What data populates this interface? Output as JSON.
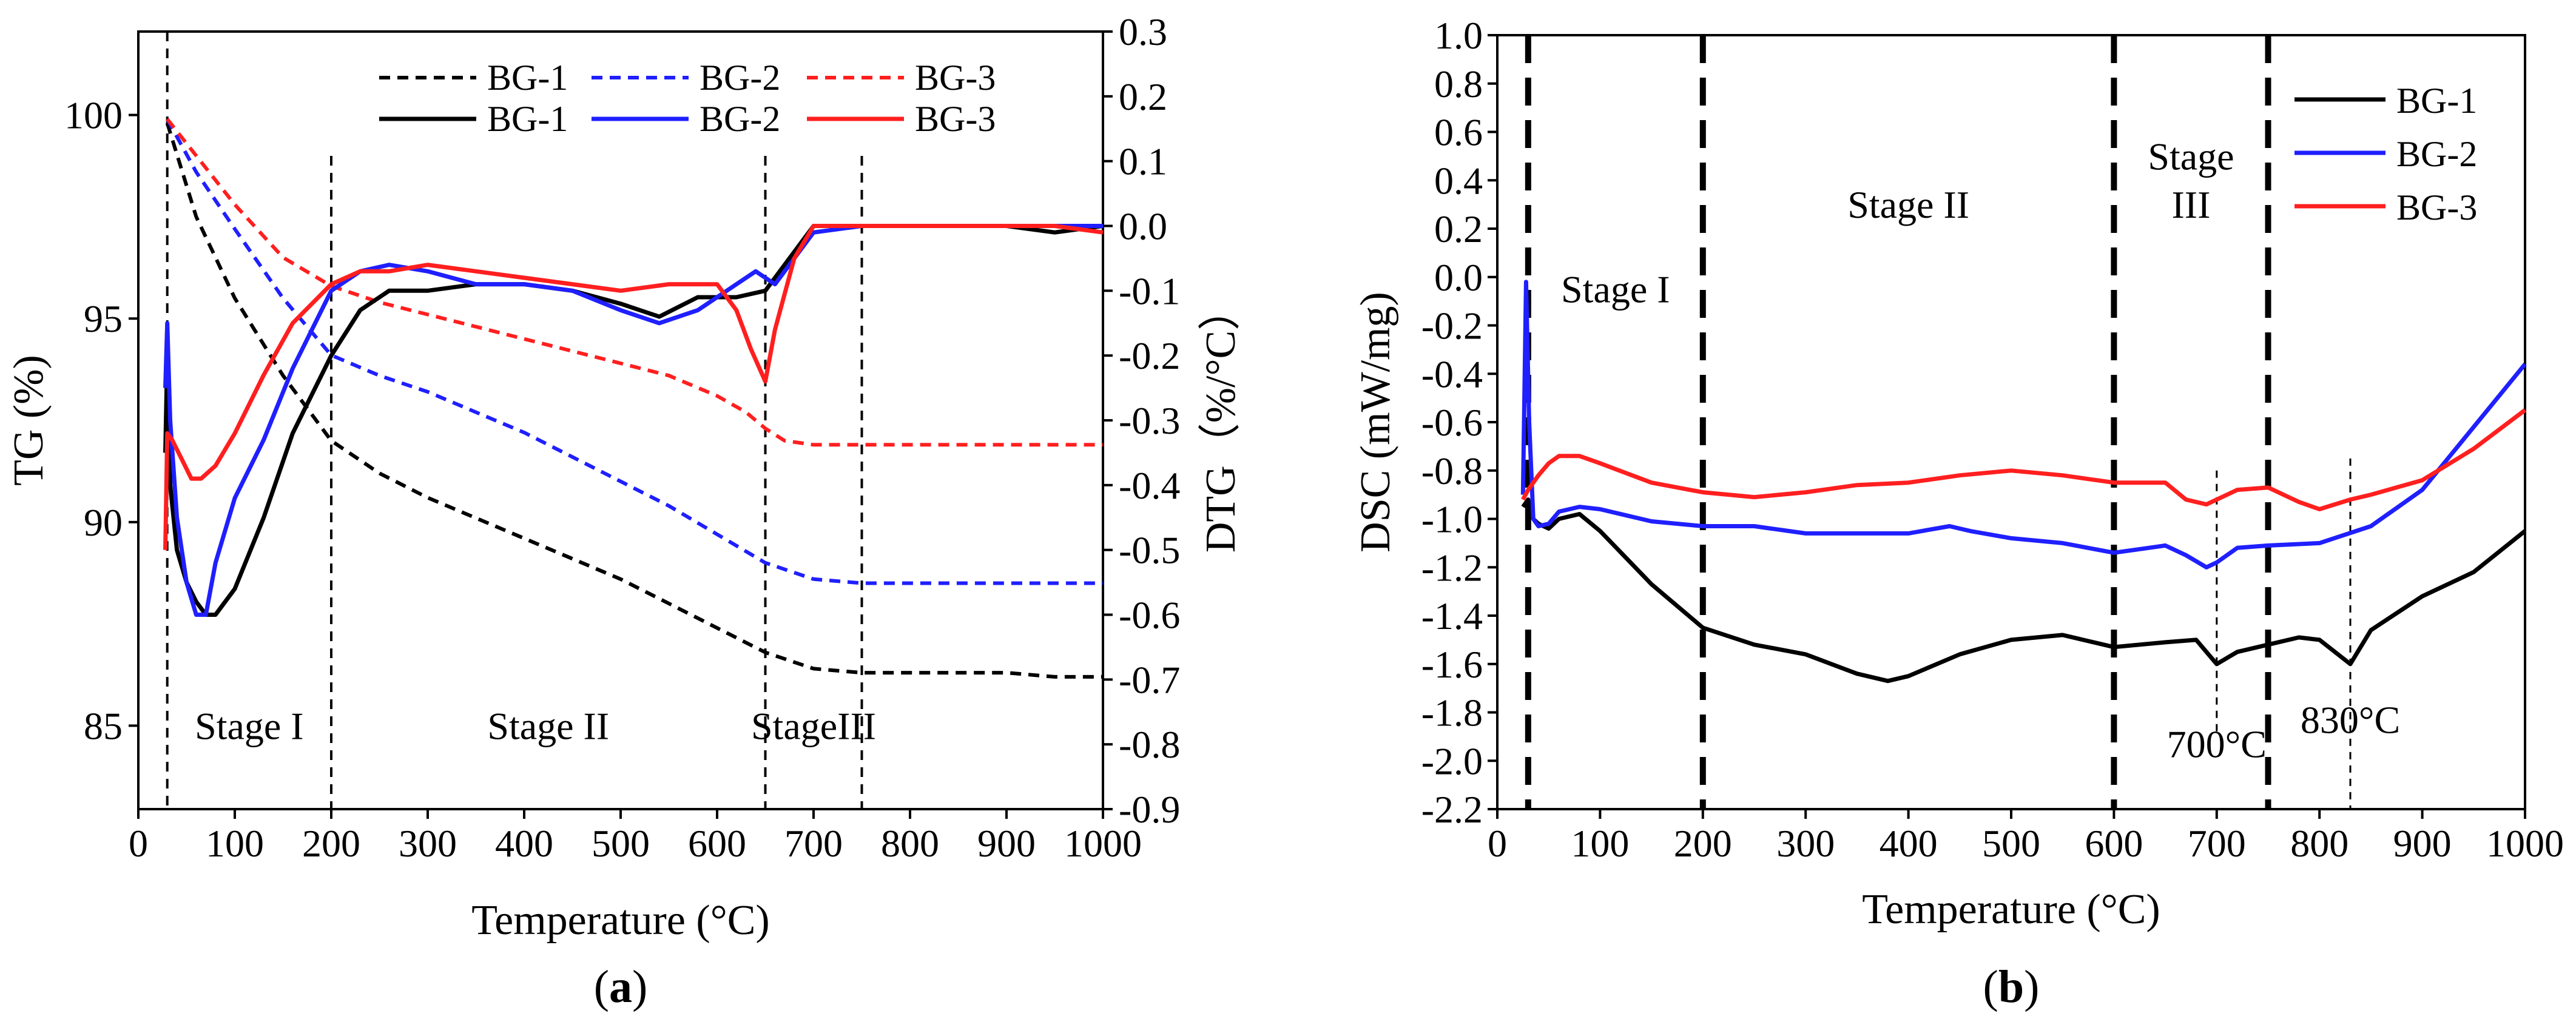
{
  "colors": {
    "bg1": "#000000",
    "bg2": "#1f1fff",
    "bg3": "#ff1f1f"
  },
  "chart_data": [
    {
      "panel": "(a)",
      "panel_parts": [
        "(",
        "a",
        ")"
      ],
      "type": "line",
      "xlabel": "Temperature (°C)",
      "ylabel": "TG (%)",
      "y2label": "DTG（%/°C）",
      "xlim": [
        0,
        1000
      ],
      "ylim": [
        82.95,
        102.05
      ],
      "y2lim": [
        -0.9,
        0.3
      ],
      "xticks": [
        0,
        100,
        200,
        300,
        400,
        500,
        600,
        700,
        800,
        900,
        1000
      ],
      "yticks": [
        85,
        90,
        95,
        100
      ],
      "y2ticks": [
        0.3,
        0.2,
        0.1,
        0.0,
        -0.1,
        -0.2,
        -0.3,
        -0.4,
        -0.5,
        -0.6,
        -0.7,
        -0.8,
        -0.9
      ],
      "y2ticklabels": [
        "0.3",
        "0.2",
        "0.1",
        "0.0",
        "-0.1",
        "-0.2",
        "-0.3",
        "-0.4",
        "-0.5",
        "-0.6",
        "-0.7",
        "-0.8",
        "-0.9"
      ],
      "legend_position": "top",
      "vlines": [
        30,
        200,
        650,
        750
      ],
      "annotations": [
        {
          "text": "Stage I",
          "x": 115,
          "y": 85
        },
        {
          "text": "Stage II",
          "x": 425,
          "y": 85
        },
        {
          "text": "StageIII",
          "x": 700,
          "y": 85
        }
      ],
      "series": [
        {
          "name": "BG-1",
          "axis": "TG",
          "style": "dashed",
          "color": "#000000",
          "x": [
            30,
            60,
            100,
            150,
            200,
            250,
            300,
            350,
            400,
            450,
            500,
            550,
            600,
            650,
            700,
            750,
            800,
            850,
            900,
            950,
            1000
          ],
          "y": [
            99.8,
            97.5,
            95.5,
            93.6,
            92.0,
            91.2,
            90.6,
            90.1,
            89.6,
            89.1,
            88.6,
            88.0,
            87.4,
            86.8,
            86.4,
            86.3,
            86.3,
            86.3,
            86.3,
            86.2,
            86.2
          ]
        },
        {
          "name": "BG-2",
          "axis": "TG",
          "style": "dashed",
          "color": "#1f1fff",
          "x": [
            30,
            60,
            100,
            150,
            200,
            250,
            300,
            350,
            400,
            450,
            500,
            550,
            600,
            650,
            700,
            750,
            800,
            850,
            900,
            950,
            1000
          ],
          "y": [
            99.9,
            98.6,
            97.2,
            95.5,
            94.1,
            93.6,
            93.2,
            92.7,
            92.2,
            91.6,
            91.0,
            90.4,
            89.7,
            89.0,
            88.6,
            88.5,
            88.5,
            88.5,
            88.5,
            88.5,
            88.5
          ]
        },
        {
          "name": "BG-3",
          "axis": "TG",
          "style": "dashed",
          "color": "#ff1f1f",
          "x": [
            30,
            60,
            100,
            150,
            200,
            250,
            300,
            350,
            400,
            450,
            500,
            550,
            600,
            630,
            650,
            670,
            700,
            750,
            800,
            850,
            900,
            950,
            1000
          ],
          "y": [
            99.9,
            99.0,
            97.8,
            96.5,
            95.8,
            95.4,
            95.1,
            94.8,
            94.5,
            94.2,
            93.9,
            93.6,
            93.1,
            92.7,
            92.3,
            92.0,
            91.9,
            91.9,
            91.9,
            91.9,
            91.9,
            91.9,
            91.9
          ]
        },
        {
          "name": "BG-1",
          "axis": "DTG",
          "style": "solid",
          "color": "#000000",
          "x": [
            28,
            30,
            33,
            40,
            50,
            60,
            70,
            80,
            100,
            130,
            160,
            200,
            230,
            260,
            300,
            350,
            400,
            450,
            500,
            540,
            580,
            620,
            650,
            680,
            700,
            720,
            750,
            800,
            850,
            900,
            950,
            1000
          ],
          "y": [
            -0.35,
            -0.2,
            -0.4,
            -0.5,
            -0.55,
            -0.58,
            -0.6,
            -0.6,
            -0.56,
            -0.45,
            -0.32,
            -0.2,
            -0.13,
            -0.1,
            -0.1,
            -0.09,
            -0.09,
            -0.1,
            -0.12,
            -0.14,
            -0.11,
            -0.11,
            -0.1,
            -0.04,
            0.0,
            0.0,
            0.0,
            0.0,
            0.0,
            0.0,
            -0.01,
            0.0
          ]
        },
        {
          "name": "BG-2",
          "axis": "DTG",
          "style": "solid",
          "color": "#1f1fff",
          "x": [
            28,
            30,
            33,
            40,
            50,
            60,
            70,
            80,
            100,
            130,
            160,
            200,
            230,
            260,
            300,
            350,
            400,
            450,
            500,
            540,
            580,
            620,
            640,
            660,
            680,
            700,
            750,
            800,
            850,
            900,
            950,
            1000
          ],
          "y": [
            -0.25,
            -0.15,
            -0.3,
            -0.45,
            -0.55,
            -0.6,
            -0.6,
            -0.52,
            -0.42,
            -0.33,
            -0.22,
            -0.1,
            -0.07,
            -0.06,
            -0.07,
            -0.09,
            -0.09,
            -0.1,
            -0.13,
            -0.15,
            -0.13,
            -0.09,
            -0.07,
            -0.09,
            -0.05,
            -0.01,
            0.0,
            0.0,
            0.0,
            0.0,
            0.0,
            0.0
          ]
        },
        {
          "name": "BG-3",
          "axis": "DTG",
          "style": "solid",
          "color": "#ff1f1f",
          "x": [
            28,
            30,
            35,
            45,
            55,
            65,
            80,
            100,
            130,
            160,
            200,
            230,
            260,
            300,
            350,
            400,
            450,
            500,
            550,
            600,
            620,
            635,
            650,
            660,
            680,
            700,
            750,
            800,
            850,
            900,
            950,
            1000
          ],
          "y": [
            -0.5,
            -0.32,
            -0.33,
            -0.36,
            -0.39,
            -0.39,
            -0.37,
            -0.32,
            -0.23,
            -0.15,
            -0.09,
            -0.07,
            -0.07,
            -0.06,
            -0.07,
            -0.08,
            -0.09,
            -0.1,
            -0.09,
            -0.09,
            -0.13,
            -0.19,
            -0.24,
            -0.16,
            -0.05,
            0.0,
            0.0,
            0.0,
            0.0,
            0.0,
            0.0,
            -0.01
          ]
        }
      ]
    },
    {
      "panel": "(b)",
      "panel_parts": [
        "(",
        "b",
        ")"
      ],
      "type": "line",
      "xlabel": "Temperature (°C)",
      "ylabel": "DSC (mW/mg)",
      "xlim": [
        0,
        1000
      ],
      "ylim": [
        -2.2,
        1.0
      ],
      "xticks": [
        0,
        100,
        200,
        300,
        400,
        500,
        600,
        700,
        800,
        900,
        1000
      ],
      "yticks": [
        1.0,
        0.8,
        0.6,
        0.4,
        0.2,
        0.0,
        -0.2,
        -0.4,
        -0.6,
        -0.8,
        -1.0,
        -1.2,
        -1.4,
        -1.6,
        -1.8,
        -2.0,
        -2.2
      ],
      "yticklabels": [
        "1.0",
        "0.8",
        "0.6",
        "0.4",
        "0.2",
        "0.0",
        "-0.2",
        "-0.4",
        "-0.6",
        "-0.8",
        "-1.0",
        "-1.2",
        "-1.4",
        "-1.6",
        "-1.8",
        "-2.0",
        "-2.2"
      ],
      "legend_position": "top-right",
      "vlines": [
        30,
        200,
        600,
        750
      ],
      "peak_lines": [
        700,
        830
      ],
      "annotations": [
        {
          "text": "Stage I",
          "x": 115,
          "y": -0.05
        },
        {
          "text": "Stage II",
          "x": 400,
          "y": 0.3
        },
        {
          "text": "Stage",
          "x": 675,
          "y": 0.5
        },
        {
          "text": "III",
          "x": 675,
          "y": 0.3
        },
        {
          "text": "700°C",
          "x": 700,
          "y": -1.93
        },
        {
          "text": "830°C",
          "x": 830,
          "y": -1.83
        }
      ],
      "series": [
        {
          "name": "BG-1",
          "color": "#000000",
          "x": [
            25,
            30,
            35,
            40,
            50,
            60,
            80,
            100,
            150,
            200,
            250,
            300,
            350,
            380,
            400,
            450,
            500,
            550,
            600,
            650,
            680,
            700,
            720,
            750,
            780,
            800,
            830,
            850,
            900,
            950,
            1000
          ],
          "y": [
            -0.95,
            -0.92,
            -1.0,
            -1.02,
            -1.04,
            -1.0,
            -0.98,
            -1.05,
            -1.27,
            -1.45,
            -1.52,
            -1.56,
            -1.64,
            -1.67,
            -1.65,
            -1.56,
            -1.5,
            -1.48,
            -1.53,
            -1.51,
            -1.5,
            -1.6,
            -1.55,
            -1.52,
            -1.49,
            -1.5,
            -1.6,
            -1.46,
            -1.32,
            -1.22,
            -1.05
          ]
        },
        {
          "name": "BG-2",
          "color": "#1f1fff",
          "x": [
            25,
            28,
            31,
            35,
            40,
            50,
            60,
            80,
            100,
            150,
            200,
            250,
            300,
            350,
            400,
            440,
            460,
            500,
            550,
            600,
            650,
            670,
            690,
            700,
            720,
            750,
            800,
            850,
            900,
            950,
            1000
          ],
          "y": [
            -0.9,
            -0.02,
            -0.6,
            -1.0,
            -1.03,
            -1.02,
            -0.97,
            -0.95,
            -0.96,
            -1.01,
            -1.03,
            -1.03,
            -1.06,
            -1.06,
            -1.06,
            -1.03,
            -1.05,
            -1.08,
            -1.1,
            -1.14,
            -1.11,
            -1.15,
            -1.2,
            -1.18,
            -1.12,
            -1.11,
            -1.1,
            -1.03,
            -0.88,
            -0.62,
            -0.36
          ]
        },
        {
          "name": "BG-3",
          "color": "#ff1f1f",
          "x": [
            25,
            30,
            40,
            50,
            60,
            80,
            100,
            150,
            200,
            250,
            300,
            350,
            400,
            450,
            500,
            550,
            600,
            650,
            670,
            690,
            720,
            750,
            780,
            800,
            830,
            850,
            900,
            950,
            1000
          ],
          "y": [
            -0.92,
            -0.88,
            -0.82,
            -0.77,
            -0.74,
            -0.74,
            -0.77,
            -0.85,
            -0.89,
            -0.91,
            -0.89,
            -0.86,
            -0.85,
            -0.82,
            -0.8,
            -0.82,
            -0.85,
            -0.85,
            -0.92,
            -0.94,
            -0.88,
            -0.87,
            -0.93,
            -0.96,
            -0.92,
            -0.9,
            -0.84,
            -0.71,
            -0.55
          ]
        }
      ]
    }
  ]
}
